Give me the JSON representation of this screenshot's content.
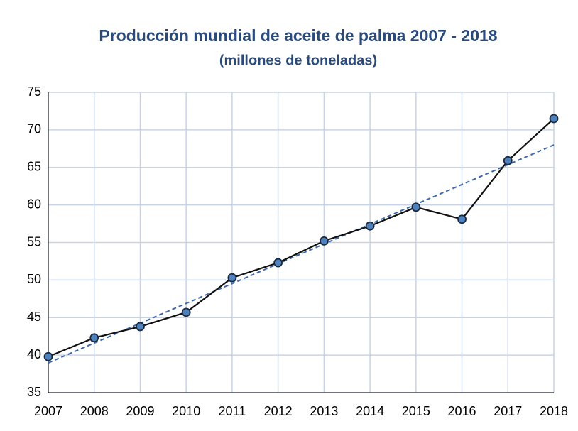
{
  "chart_data": {
    "type": "line",
    "title": "Producción mundial de aceite de palma  2007 - 2018",
    "subtitle": "(millones de toneladas)",
    "x": [
      2007,
      2008,
      2009,
      2010,
      2011,
      2012,
      2013,
      2014,
      2015,
      2016,
      2017,
      2018
    ],
    "series": [
      {
        "color": "#4f81bd",
        "values": [
          39.8,
          42.3,
          43.8,
          45.7,
          50.3,
          52.3,
          55.2,
          57.2,
          59.7,
          58.1,
          65.9,
          71.5
        ]
      }
    ],
    "xlim": [
      2007,
      2018
    ],
    "xticks": [
      2007,
      2008,
      2009,
      2010,
      2011,
      2012,
      2013,
      2014,
      2015,
      2016,
      2017,
      2018
    ],
    "ylim": [
      35,
      75
    ],
    "yticks": [
      35,
      40,
      45,
      50,
      55,
      60,
      65,
      70,
      75
    ],
    "grid": true,
    "trendline": true
  }
}
